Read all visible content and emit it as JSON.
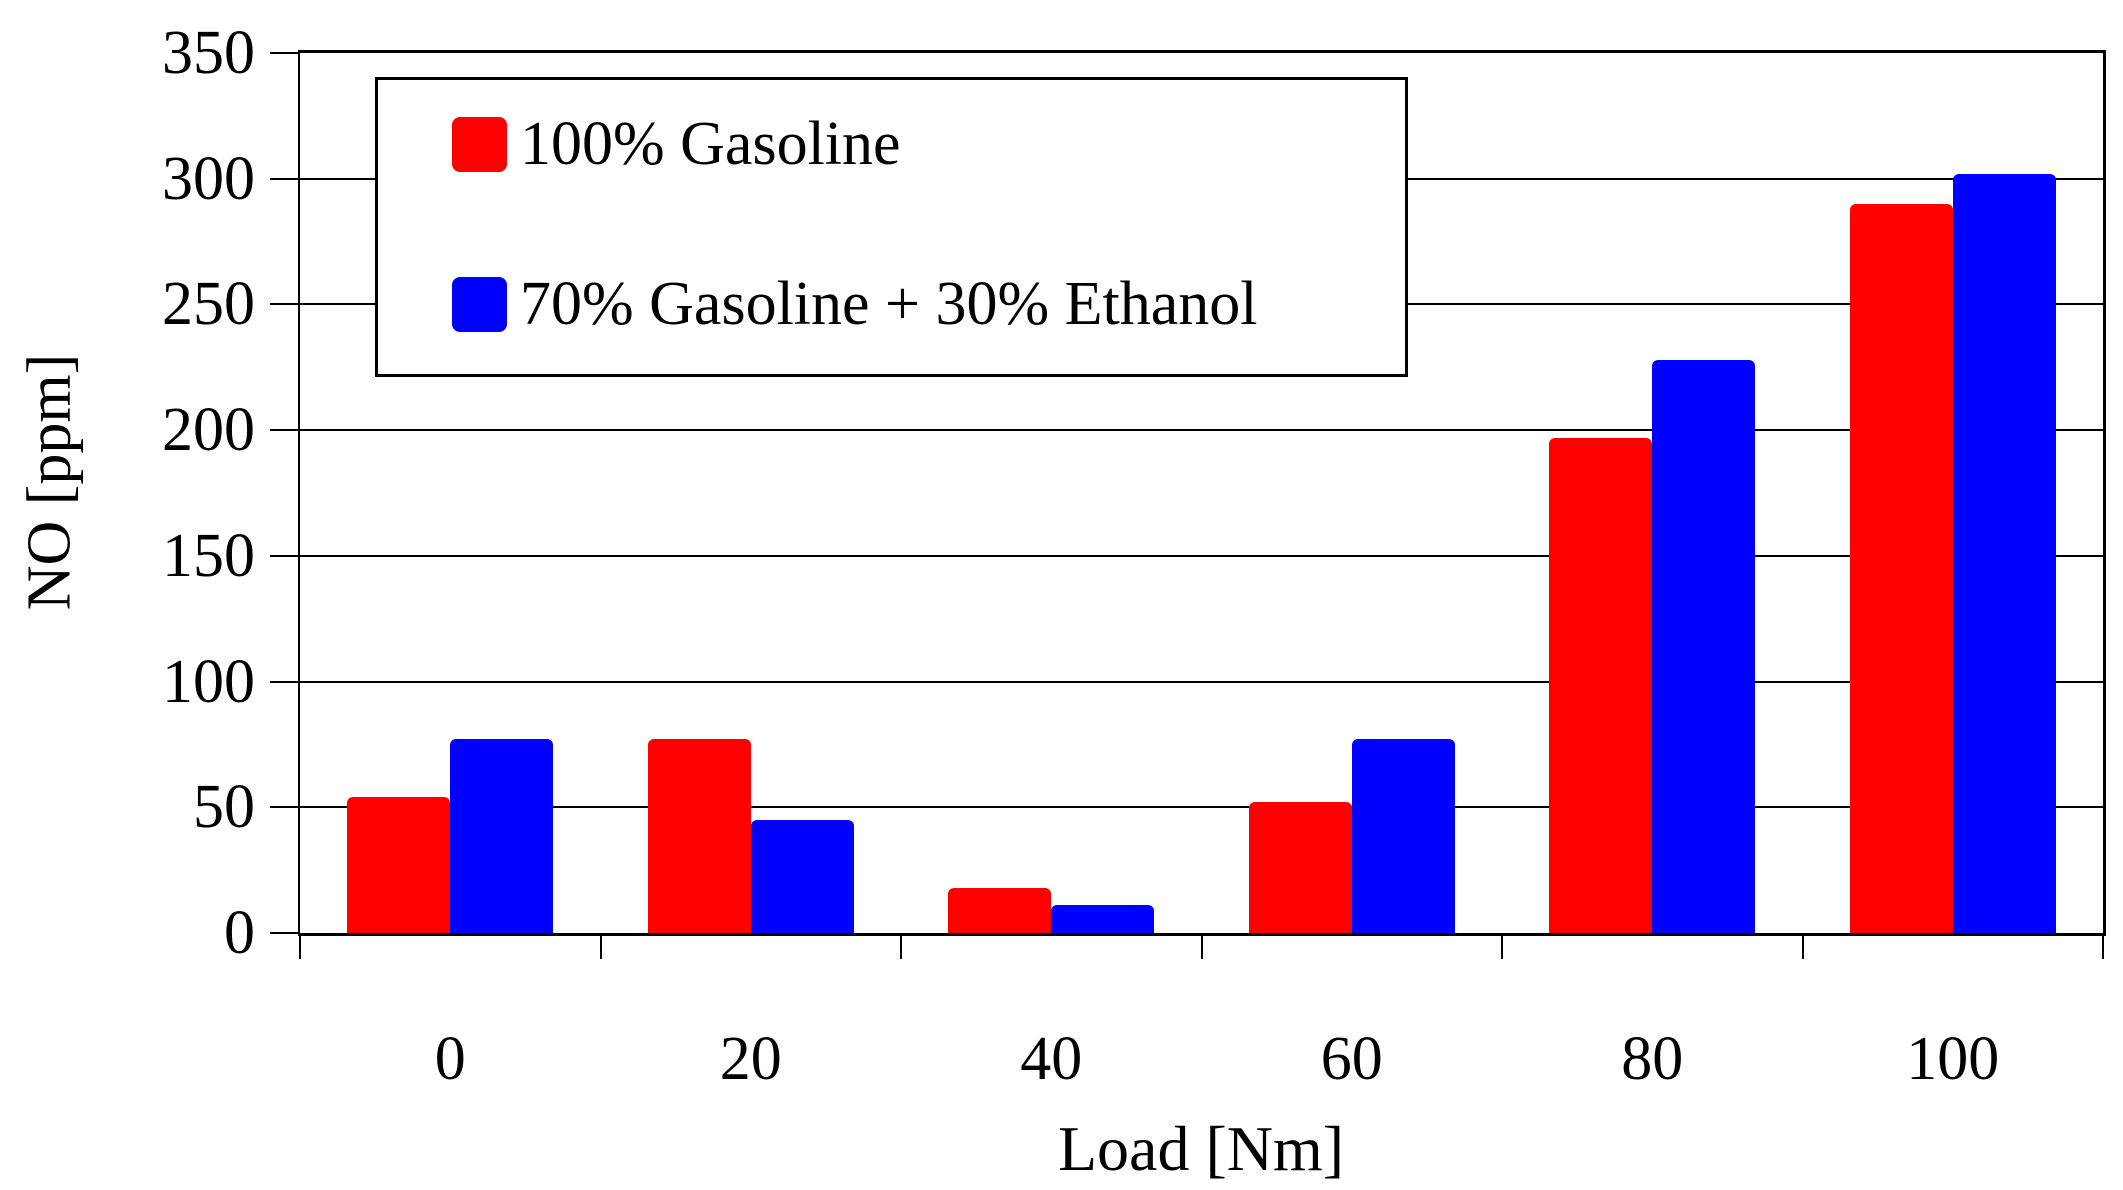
{
  "chart_data": {
    "type": "bar",
    "title": "",
    "xlabel": "Load [Nm]",
    "ylabel": "NO [ppm]",
    "categories": [
      "0",
      "20",
      "40",
      "60",
      "80",
      "100"
    ],
    "series": [
      {
        "name": "100% Gasoline",
        "color": "#ff0000",
        "values": [
          54,
          77,
          18,
          52,
          197,
          290
        ]
      },
      {
        "name": "70% Gasoline + 30% Ethanol",
        "color": "#0000ff",
        "values": [
          77,
          45,
          11,
          77,
          228,
          302
        ]
      }
    ],
    "ylim": [
      0,
      350
    ],
    "yticks": [
      0,
      50,
      100,
      150,
      200,
      250,
      300,
      350
    ],
    "grid": true,
    "legend_position": "top-left",
    "axis_color": "#000000",
    "background_color": "#ffffff"
  }
}
